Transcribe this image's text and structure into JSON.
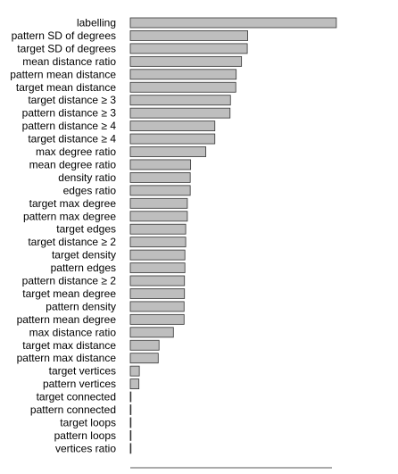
{
  "chart_data": {
    "type": "bar",
    "orientation": "horizontal",
    "title": "",
    "xlabel": "",
    "ylabel": "",
    "xlim": [
      0,
      0.5
    ],
    "grid": false,
    "legend": "none",
    "bar_color": "#bebebe",
    "bar_edge_color": "#333333",
    "categories": [
      "labelling",
      "pattern SD of degrees",
      "target SD of degrees",
      "mean distance ratio",
      "pattern mean distance",
      "target mean distance",
      "target distance ≥ 3",
      "pattern distance ≥ 3",
      "pattern distance ≥ 4",
      "target distance ≥ 4",
      "max degree ratio",
      "mean degree ratio",
      "density ratio",
      "edges ratio",
      "target max degree",
      "pattern max degree",
      "target edges",
      "target distance ≥ 2",
      "target density",
      "pattern edges",
      "pattern distance ≥ 2",
      "target mean degree",
      "pattern density",
      "pattern mean degree",
      "max distance ratio",
      "target max distance",
      "pattern max distance",
      "target vertices",
      "pattern vertices",
      "target connected",
      "pattern connected",
      "target loops",
      "pattern loops",
      "vertices ratio"
    ],
    "values": [
      0.502,
      0.286,
      0.285,
      0.271,
      0.258,
      0.257,
      0.244,
      0.243,
      0.206,
      0.206,
      0.184,
      0.147,
      0.146,
      0.146,
      0.139,
      0.139,
      0.135,
      0.135,
      0.133,
      0.133,
      0.132,
      0.132,
      0.131,
      0.131,
      0.105,
      0.07,
      0.068,
      0.022,
      0.021,
      0.001,
      0.001,
      0.001,
      0.001,
      0.001
    ]
  }
}
